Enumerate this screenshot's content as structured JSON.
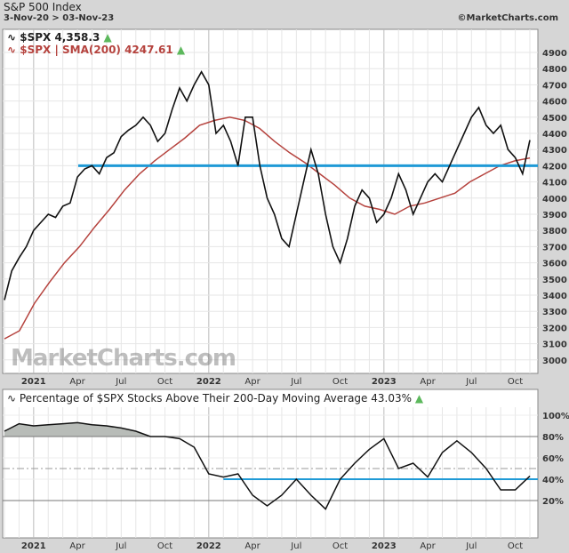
{
  "header": {
    "title": "S&P 500 Index",
    "date_range": "3-Nov-20 > 03-Nov-23",
    "brand": "©MarketCharts.com",
    "watermark": "MarketCharts.com"
  },
  "legend": {
    "spx": "$SPX 4,358.3",
    "sma": "$SPX | SMA(200) 4247.61",
    "pct": "Percentage of $SPX Stocks Above Their 200-Day Moving Average 43.03%",
    "up_icon": "triangle-up",
    "line_icon": "line-chart-icon"
  },
  "colors": {
    "price": "#111111",
    "sma": "#b5423d",
    "support": "#1f9ad6",
    "up": "#5cb85c",
    "fill": "#b8bcb8"
  },
  "chart_data": [
    {
      "type": "line",
      "title": "S&P 500 Index",
      "ylim": [
        3000,
        4900
      ],
      "yticks": [
        3000,
        3100,
        3200,
        3300,
        3400,
        3500,
        3600,
        3700,
        3800,
        3900,
        4000,
        4100,
        4200,
        4300,
        4400,
        4500,
        4600,
        4700,
        4800,
        4900
      ],
      "xticks": [
        "2021",
        "Apr",
        "Jul",
        "Oct",
        "2022",
        "Apr",
        "Jul",
        "Oct",
        "2023",
        "Apr",
        "Jul",
        "Oct"
      ],
      "x_start": "2020-11-03",
      "x_end": "2023-11-03",
      "horizontal_line": 4200,
      "series": [
        {
          "name": "$SPX",
          "x_step": "half-month",
          "values": [
            3370,
            3550,
            3630,
            3700,
            3800,
            3850,
            3900,
            3880,
            3950,
            3970,
            4130,
            4180,
            4200,
            4150,
            4250,
            4280,
            4380,
            4420,
            4450,
            4500,
            4450,
            4350,
            4400,
            4550,
            4680,
            4600,
            4700,
            4780,
            4700,
            4400,
            4450,
            4350,
            4200,
            4500,
            4500,
            4200,
            4000,
            3900,
            3750,
            3700,
            3900,
            4100,
            4300,
            4150,
            3900,
            3700,
            3600,
            3750,
            3950,
            4050,
            4000,
            3850,
            3900,
            4000,
            4150,
            4050,
            3900,
            4000,
            4100,
            4150,
            4100,
            4200,
            4300,
            4400,
            4500,
            4560,
            4450,
            4400,
            4450,
            4300,
            4250,
            4150,
            4358.3
          ]
        },
        {
          "name": "$SPX | SMA(200)",
          "x_step": "month",
          "values": [
            3130,
            3180,
            3350,
            3480,
            3600,
            3700,
            3820,
            3930,
            4050,
            4150,
            4230,
            4300,
            4370,
            4450,
            4480,
            4500,
            4480,
            4430,
            4350,
            4280,
            4220,
            4150,
            4080,
            4000,
            3950,
            3930,
            3900,
            3950,
            3970,
            4000,
            4030,
            4100,
            4150,
            4200,
            4230,
            4247.61
          ]
        }
      ]
    },
    {
      "type": "area",
      "title": "Percentage of $SPX Stocks Above Their 200-Day Moving Average",
      "ylim": [
        0,
        100
      ],
      "yticks": [
        "20%",
        "40%",
        "60%",
        "80%",
        "100%"
      ],
      "xticks": [
        "2021",
        "Apr",
        "Jul",
        "Oct",
        "2022",
        "Apr",
        "Jul",
        "Oct",
        "2023",
        "Apr",
        "Jul",
        "Oct"
      ],
      "reference_lines": [
        80,
        50,
        20
      ],
      "horizontal_line": 40,
      "series": [
        {
          "name": "Percentage of $SPX Stocks Above Their 200-Day Moving Average",
          "x_step": "month",
          "values": [
            85,
            92,
            90,
            91,
            92,
            93,
            91,
            90,
            88,
            85,
            80,
            80,
            78,
            70,
            45,
            42,
            45,
            25,
            15,
            25,
            40,
            25,
            12,
            40,
            55,
            68,
            78,
            50,
            55,
            42,
            65,
            76,
            65,
            50,
            30,
            30,
            43.03
          ]
        }
      ]
    }
  ]
}
